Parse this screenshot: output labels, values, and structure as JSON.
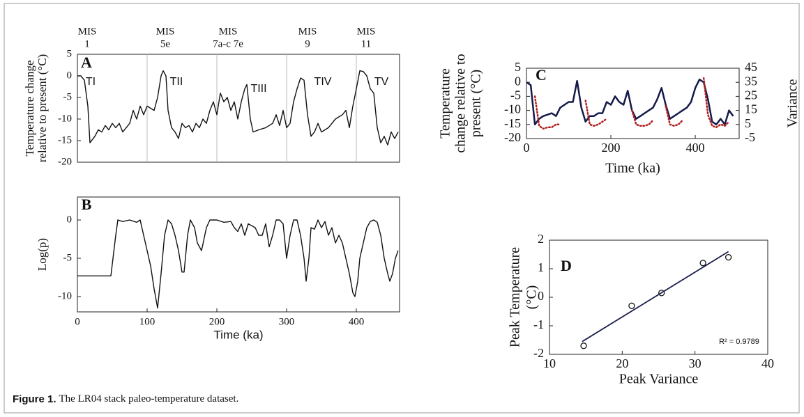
{
  "caption": {
    "label": "Figure 1.",
    "text": "The LR04 stack paleo-temperature dataset."
  },
  "chart_data": [
    {
      "type": "line",
      "panel_label": "A",
      "ylabel": [
        "Temperature change",
        "relative to present (°C)"
      ],
      "xlim": [
        0,
        462
      ],
      "ylim": [
        -20,
        5
      ],
      "yticks": [
        5,
        0,
        -5,
        -10,
        -15,
        -20
      ],
      "x_gridlines": [
        100,
        200,
        300,
        400
      ],
      "annotations": [
        [
          "MIS",
          "1"
        ],
        [
          "MIS",
          "5e"
        ],
        [
          "MIS",
          "7a-c  7e"
        ],
        [
          "MIS",
          "9"
        ],
        [
          "MIS",
          "11"
        ]
      ],
      "curve_labels": [
        "TI",
        "TII",
        "TIII",
        "TIV",
        "TV"
      ],
      "x": [
        0,
        5,
        10,
        15,
        18,
        25,
        30,
        35,
        40,
        45,
        50,
        55,
        60,
        65,
        70,
        75,
        80,
        85,
        90,
        95,
        100,
        105,
        110,
        115,
        120,
        123,
        127,
        130,
        135,
        140,
        145,
        150,
        155,
        160,
        165,
        170,
        175,
        180,
        185,
        190,
        195,
        200,
        205,
        210,
        215,
        220,
        225,
        230,
        235,
        240,
        243,
        248,
        252,
        260,
        270,
        280,
        285,
        290,
        295,
        300,
        305,
        310,
        315,
        320,
        325,
        330,
        335,
        340,
        345,
        350,
        360,
        370,
        380,
        385,
        390,
        395,
        400,
        405,
        410,
        415,
        420,
        425,
        430,
        435,
        440,
        445,
        450,
        455,
        460
      ],
      "series": [
        {
          "color": "#111111",
          "values": [
            0,
            0,
            -1,
            -7,
            -15.5,
            -14,
            -12.5,
            -13,
            -11.5,
            -12.5,
            -11,
            -12,
            -11,
            -13,
            -12,
            -11,
            -8,
            -10,
            -7,
            -9,
            -7,
            -7.5,
            -8,
            -5,
            0,
            1.2,
            0,
            -8,
            -12,
            -13,
            -14.5,
            -11,
            -12,
            -11.5,
            -13,
            -11,
            -12,
            -10,
            -11,
            -8,
            -6,
            -9,
            -4,
            -6,
            -5,
            -8,
            -6,
            -10,
            -6,
            -3,
            -2,
            -10,
            -13,
            -12.5,
            -12,
            -11,
            -9,
            -11.5,
            -8,
            -12,
            -11,
            -6,
            -3,
            -0.5,
            -1,
            -9,
            -14,
            -13,
            -11,
            -13,
            -12,
            -10,
            -9,
            -8,
            -12,
            -7,
            -3,
            1.2,
            1,
            0,
            -3,
            -4,
            -12,
            -15.5,
            -14,
            -16,
            -13,
            -14.5,
            -13
          ]
        }
      ]
    },
    {
      "type": "line",
      "panel_label": "B",
      "ylabel": "Log(p)",
      "xlabel": "Time (ka)",
      "xlim": [
        0,
        462
      ],
      "ylim": [
        -12,
        3
      ],
      "yticks": [
        0,
        -5,
        -10
      ],
      "xticks": [
        0,
        100,
        200,
        300,
        400
      ],
      "x": [
        0,
        48,
        55,
        58,
        65,
        75,
        85,
        90,
        95,
        100,
        105,
        110,
        115,
        120,
        125,
        130,
        135,
        140,
        145,
        150,
        153,
        158,
        162,
        168,
        172,
        178,
        185,
        190,
        200,
        210,
        220,
        225,
        230,
        235,
        240,
        245,
        255,
        260,
        265,
        270,
        275,
        280,
        285,
        290,
        295,
        300,
        305,
        310,
        315,
        320,
        325,
        328,
        332,
        335,
        340,
        345,
        350,
        355,
        360,
        365,
        370,
        375,
        380,
        385,
        390,
        395,
        398,
        402,
        405,
        410,
        415,
        420,
        425,
        430,
        435,
        440,
        445,
        448,
        452,
        456,
        460
      ],
      "series": [
        {
          "color": "#111111",
          "values": [
            -7.3,
            -7.3,
            -2,
            0,
            -0.2,
            0,
            -0.3,
            0,
            -2,
            -4,
            -6,
            -9,
            -11.5,
            -7,
            -2,
            0,
            -0.5,
            -2,
            -4,
            -6.8,
            -6.8,
            -2,
            0,
            -1,
            -3,
            -4,
            -1,
            0,
            0,
            -0.3,
            -0.2,
            -1,
            -1.5,
            -0.5,
            -2,
            -0.5,
            -1,
            -2,
            -2,
            -0.5,
            -3.5,
            -2,
            0,
            0,
            -0.5,
            -5,
            -2,
            0,
            0,
            -2,
            -5,
            -8,
            -5,
            -1,
            -1.2,
            0,
            -1,
            -0.2,
            -2,
            -1,
            -3,
            -2,
            -3,
            -5,
            -7,
            -9.5,
            -10,
            -8,
            -5,
            -3,
            -1,
            -0.2,
            0,
            -0.3,
            -2,
            -5,
            -7,
            -8,
            -7,
            -5,
            -4
          ]
        }
      ]
    },
    {
      "type": "line",
      "panel_label": "C",
      "ylabel": [
        "Temperature",
        "change relative to",
        "present (°C)"
      ],
      "y2label": "Variance",
      "xlabel": "Time (ka)",
      "xlim": [
        0,
        504
      ],
      "ylim": [
        -20,
        5
      ],
      "yticks": [
        5,
        0,
        -5,
        -10,
        -15,
        -20
      ],
      "y2lim": [
        -5,
        45
      ],
      "y2ticks": [
        45,
        35,
        25,
        15,
        5,
        -5
      ],
      "xticks": [
        0,
        200,
        400
      ],
      "x": [
        0,
        10,
        20,
        30,
        40,
        50,
        60,
        70,
        80,
        90,
        100,
        110,
        120,
        130,
        140,
        150,
        160,
        170,
        180,
        190,
        200,
        210,
        220,
        230,
        240,
        250,
        260,
        270,
        280,
        290,
        300,
        310,
        320,
        330,
        340,
        350,
        360,
        370,
        380,
        390,
        400,
        410,
        420,
        430,
        440,
        450,
        460,
        470,
        480,
        490
      ],
      "series": [
        {
          "color": "#141a4a",
          "values": [
            0,
            -1,
            -15,
            -13,
            -12,
            -11.5,
            -11,
            -12,
            -9,
            -8,
            -7,
            -7,
            0.5,
            -9,
            -14,
            -12,
            -12,
            -11,
            -11,
            -7,
            -8,
            -5,
            -7,
            -8,
            -3,
            -10,
            -13,
            -12,
            -11,
            -10,
            -9,
            -6,
            -2,
            -8,
            -13,
            -12,
            -11,
            -10,
            -9,
            -7,
            -2,
            1,
            0,
            -6,
            -14,
            -15,
            -13,
            -15,
            -10,
            -12
          ]
        },
        {
          "color": "#b01c1c",
          "axis": "y2",
          "dotted": true,
          "values": [
            null,
            null,
            25,
            4,
            2,
            3,
            3,
            5,
            5,
            null,
            null,
            null,
            null,
            null,
            22,
            5,
            4,
            5,
            7,
            9,
            null,
            null,
            null,
            null,
            null,
            15,
            5,
            4,
            4,
            5,
            8,
            null,
            null,
            18,
            5,
            4,
            5,
            8,
            null,
            null,
            null,
            null,
            38,
            12,
            4,
            3,
            5,
            4,
            7,
            null
          ]
        }
      ]
    },
    {
      "type": "scatter",
      "panel_label": "D",
      "ylabel": [
        "Peak Temperature",
        "(°C)"
      ],
      "xlabel": "Peak Variance",
      "annotation": "R² = 0.9789",
      "xlim": [
        10,
        40
      ],
      "ylim": [
        -2,
        2
      ],
      "xticks": [
        10,
        20,
        30,
        40
      ],
      "yticks": [
        2,
        1,
        0,
        -1,
        -2
      ],
      "x": [
        14.7,
        21.3,
        25.4,
        31.1,
        34.6
      ],
      "series": [
        {
          "color": "#111111",
          "values": [
            -1.7,
            -0.3,
            0.15,
            1.2,
            1.4
          ]
        }
      ],
      "fit_line": {
        "x": [
          14.5,
          34.6
        ],
        "y": [
          -1.55,
          1.6
        ]
      }
    }
  ]
}
